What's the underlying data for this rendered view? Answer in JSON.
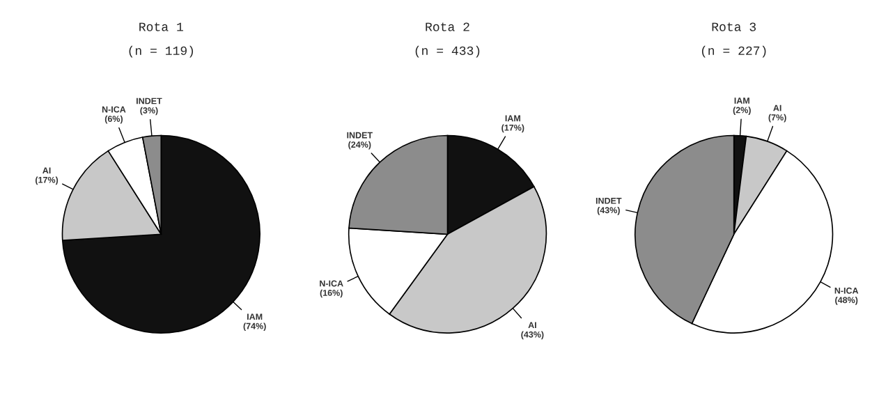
{
  "chart_data": [
    {
      "type": "pie",
      "title": "Rota 1",
      "subtitle": "(n = 119)",
      "categories": [
        "IAM",
        "AI",
        "N-ICA",
        "INDET"
      ],
      "values": [
        74,
        17,
        6,
        3
      ],
      "value_labels": [
        "(74%)",
        "(17%)",
        "(6%)",
        "(3%)"
      ],
      "colors": [
        "#111111",
        "#c8c8c8",
        "#ffffff",
        "#8c8c8c"
      ],
      "legend": false
    },
    {
      "type": "pie",
      "title": "Rota 2",
      "subtitle": "(n = 433)",
      "categories": [
        "IAM",
        "AI",
        "N-ICA",
        "INDET"
      ],
      "values": [
        17,
        43,
        16,
        24
      ],
      "value_labels": [
        "(17%)",
        "(43%)",
        "(16%)",
        "(24%)"
      ],
      "colors": [
        "#111111",
        "#c8c8c8",
        "#ffffff",
        "#8c8c8c"
      ],
      "legend": false
    },
    {
      "type": "pie",
      "title": "Rota 3",
      "subtitle": "(n = 227)",
      "categories": [
        "IAM",
        "AI",
        "N-ICA",
        "INDET"
      ],
      "values": [
        2,
        7,
        48,
        43
      ],
      "value_labels": [
        "(2%)",
        "(7%)",
        "(48%)",
        "(43%)"
      ],
      "colors": [
        "#111111",
        "#c8c8c8",
        "#ffffff",
        "#8c8c8c"
      ],
      "legend": false
    }
  ]
}
